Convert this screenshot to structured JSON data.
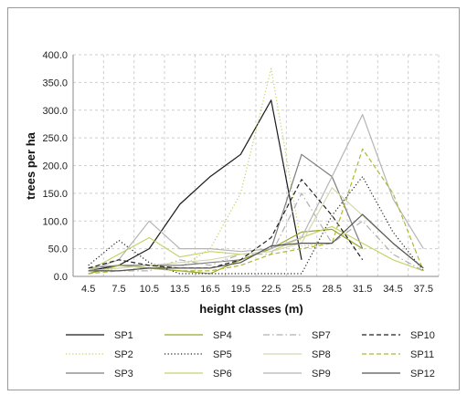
{
  "chart_data": {
    "type": "line",
    "xlabel": "height classes (m)",
    "ylabel": "trees per ha",
    "x": [
      "4.5",
      "7.5",
      "10.5",
      "13.5",
      "16.5",
      "19.5",
      "22.5",
      "25.5",
      "28.5",
      "31.5",
      "34.5",
      "37.5"
    ],
    "yticks": [
      "0.0",
      "50.0",
      "100.0",
      "150.0",
      "200.0",
      "250.0",
      "300.0",
      "350.0",
      "400.0"
    ],
    "ylim": [
      0,
      400
    ],
    "grid": "dashed",
    "legend_position": "bottom",
    "series": [
      {
        "name": "SP1",
        "color": "#1a1a1a",
        "dash": "solid",
        "values": [
          10,
          20,
          50,
          130,
          180,
          220,
          318,
          30,
          null,
          null,
          null,
          null
        ]
      },
      {
        "name": "SP2",
        "color": "#c9cf5a",
        "dash": "dotted",
        "values": [
          5,
          15,
          20,
          15,
          50,
          150,
          375,
          55,
          60,
          null,
          null,
          null
        ]
      },
      {
        "name": "SP3",
        "color": "#7d7d7d",
        "dash": "solid",
        "values": [
          15,
          20,
          20,
          20,
          25,
          30,
          50,
          220,
          180,
          50,
          null,
          null
        ]
      },
      {
        "name": "SP4",
        "color": "#9ba82a",
        "dash": "solid",
        "values": [
          5,
          20,
          15,
          10,
          5,
          30,
          50,
          80,
          85,
          50,
          null,
          null
        ]
      },
      {
        "name": "SP5",
        "color": "#222222",
        "dash": "dotted",
        "values": [
          20,
          65,
          25,
          5,
          5,
          5,
          5,
          5,
          110,
          180,
          80,
          10
        ]
      },
      {
        "name": "SP6",
        "color": "#c8d26a",
        "dash": "solid",
        "values": [
          10,
          40,
          70,
          35,
          45,
          40,
          45,
          70,
          90,
          60,
          30,
          10
        ]
      },
      {
        "name": "SP7",
        "color": "#b0b0b0",
        "dash": "dashdot",
        "values": [
          10,
          10,
          10,
          30,
          20,
          40,
          40,
          150,
          60,
          100,
          40,
          10
        ]
      },
      {
        "name": "SP8",
        "color": "#d4d8b0",
        "dash": "solid",
        "values": [
          10,
          15,
          20,
          25,
          30,
          40,
          45,
          60,
          160,
          110,
          60,
          15
        ]
      },
      {
        "name": "SP9",
        "color": "#b5b5b5",
        "dash": "solid",
        "values": [
          10,
          30,
          100,
          50,
          50,
          45,
          50,
          70,
          180,
          292,
          140,
          50
        ]
      },
      {
        "name": "SP10",
        "color": "#222222",
        "dash": "dashed",
        "values": [
          15,
          30,
          20,
          15,
          15,
          30,
          70,
          175,
          110,
          30,
          null,
          null
        ]
      },
      {
        "name": "SP11",
        "color": "#aeb832",
        "dash": "dashed",
        "values": [
          5,
          10,
          15,
          10,
          10,
          20,
          40,
          50,
          60,
          230,
          150,
          10
        ]
      },
      {
        "name": "SP12",
        "color": "#555555",
        "dash": "solid",
        "values": [
          10,
          10,
          15,
          15,
          15,
          25,
          55,
          60,
          60,
          112,
          60,
          15
        ]
      }
    ]
  }
}
